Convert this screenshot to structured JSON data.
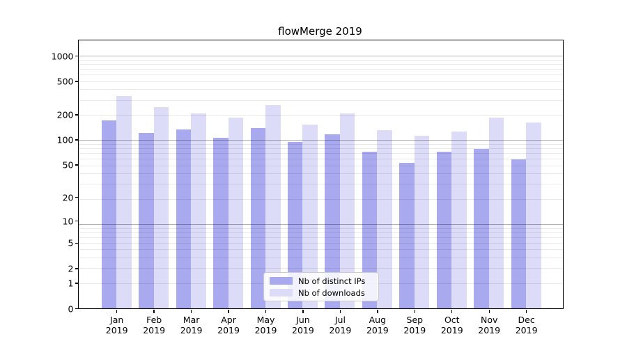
{
  "chart_data": {
    "type": "bar",
    "title": "flowMerge 2019",
    "categories": [
      "Jan 2019",
      "Feb 2019",
      "Mar 2019",
      "Apr 2019",
      "May 2019",
      "Jun 2019",
      "Jul 2019",
      "Aug 2019",
      "Sep 2019",
      "Oct 2019",
      "Nov 2019",
      "Dec 2019"
    ],
    "x_tick_line1": [
      "Jan",
      "Feb",
      "Mar",
      "Apr",
      "May",
      "Jun",
      "Jul",
      "Aug",
      "Sep",
      "Oct",
      "Nov",
      "Dec"
    ],
    "x_tick_line2": "2019",
    "series": [
      {
        "name": "Nb of distinct IPs",
        "color": "#a9a9f0",
        "values": [
          170,
          120,
          132,
          106,
          138,
          93,
          116,
          72,
          53,
          72,
          77,
          58
        ]
      },
      {
        "name": "Nb of downloads",
        "color": "#dcdcf9",
        "values": [
          330,
          245,
          206,
          184,
          261,
          152,
          206,
          130,
          112,
          125,
          184,
          162
        ]
      }
    ],
    "yscale": "log10(1+value)",
    "y_ticks": [
      0,
      1,
      2,
      5,
      10,
      20,
      50,
      100,
      200,
      500,
      1000
    ],
    "ylim": [
      0,
      1420
    ],
    "grid": "horizontal: major at decades, minor at 2-9 per decade",
    "legend_position": "inside lower-center"
  },
  "colors": {
    "background": "#ffffff",
    "bar_distinct_ips": "#a9a9f0",
    "bar_downloads": "#dcdcf9",
    "major_gridline": "#b0b0b0",
    "minor_gridline": "#eaeaea",
    "axis": "#000000",
    "legend_border": "#cccccc"
  }
}
